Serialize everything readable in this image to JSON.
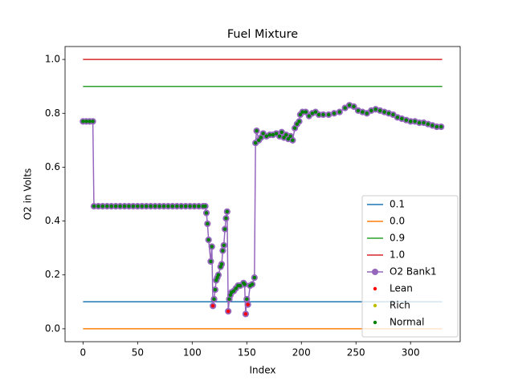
{
  "chart_data": {
    "type": "line",
    "title": "Fuel Mixture",
    "xlabel": "Index",
    "ylabel": "O2 in Volts",
    "xlim": [
      -16.45,
      345.45
    ],
    "ylim": [
      -0.048,
      1.048
    ],
    "xticks": [
      0,
      50,
      100,
      150,
      200,
      250,
      300
    ],
    "yticks": [
      {
        "value": 0,
        "label": "0.0"
      },
      0.2,
      0.4,
      0.6,
      0.8,
      {
        "value": 1,
        "label": "1.0"
      }
    ],
    "legend": "lower right",
    "series": [
      {
        "name": "0.1",
        "color": "#1f77b4",
        "style": "line",
        "x": [
          0,
          329
        ],
        "values": [
          0.1,
          0.1
        ]
      },
      {
        "name": "0.0",
        "color": "#ff7f0e",
        "style": "line",
        "x": [
          0,
          329
        ],
        "values": [
          0,
          0
        ]
      },
      {
        "name": "0.9",
        "color": "#2ca02c",
        "style": "line",
        "x": [
          0,
          329
        ],
        "values": [
          0.9,
          0.9
        ]
      },
      {
        "name": "1.0",
        "color": "#d62728",
        "style": "line",
        "x": [
          0,
          329
        ],
        "values": [
          1,
          1
        ]
      },
      {
        "name": "O2 Bank1",
        "color": "#9467bd",
        "style": "line-marker",
        "x": [
          0,
          3,
          6,
          9,
          10,
          14,
          18,
          22,
          26,
          30,
          34,
          38,
          42,
          46,
          50,
          54,
          58,
          62,
          66,
          70,
          74,
          78,
          82,
          86,
          90,
          94,
          98,
          102,
          106,
          110,
          112,
          113,
          114,
          115,
          117,
          118,
          119,
          120,
          121,
          122,
          123,
          124,
          126,
          127,
          128,
          129,
          130,
          131,
          132,
          133,
          134,
          135,
          136,
          138,
          140,
          142,
          144,
          147,
          148,
          149,
          150,
          151,
          153,
          155,
          157,
          158,
          159,
          161,
          163,
          165,
          168,
          171,
          174,
          177,
          180,
          182,
          184,
          186,
          188,
          190,
          192,
          194,
          196,
          198,
          199,
          201,
          204,
          207,
          210,
          213,
          216,
          220,
          225,
          230,
          235,
          240,
          244,
          248,
          252,
          256,
          260,
          264,
          268,
          272,
          276,
          280,
          284,
          288,
          292,
          296,
          300,
          304,
          308,
          312,
          316,
          320,
          324,
          328
        ],
        "values": [
          0.77,
          0.77,
          0.77,
          0.77,
          0.455,
          0.455,
          0.455,
          0.455,
          0.455,
          0.455,
          0.455,
          0.455,
          0.455,
          0.455,
          0.455,
          0.455,
          0.455,
          0.455,
          0.455,
          0.455,
          0.455,
          0.455,
          0.455,
          0.455,
          0.455,
          0.455,
          0.455,
          0.455,
          0.455,
          0.455,
          0.455,
          0.43,
          0.39,
          0.33,
          0.25,
          0.305,
          0.085,
          0.11,
          0.145,
          0.18,
          0.19,
          0.2,
          0.23,
          0.24,
          0.29,
          0.31,
          0.37,
          0.41,
          0.435,
          0.065,
          0.11,
          0.125,
          0.135,
          0.14,
          0.15,
          0.16,
          0.16,
          0.17,
          0.165,
          0.055,
          0.11,
          0.09,
          0.16,
          0.165,
          0.19,
          0.69,
          0.735,
          0.7,
          0.71,
          0.725,
          0.715,
          0.72,
          0.72,
          0.725,
          0.715,
          0.73,
          0.71,
          0.72,
          0.705,
          0.715,
          0.7,
          0.745,
          0.76,
          0.77,
          0.795,
          0.805,
          0.805,
          0.79,
          0.8,
          0.805,
          0.795,
          0.795,
          0.795,
          0.8,
          0.805,
          0.82,
          0.83,
          0.825,
          0.81,
          0.805,
          0.8,
          0.81,
          0.815,
          0.81,
          0.805,
          0.8,
          0.795,
          0.785,
          0.78,
          0.775,
          0.77,
          0.77,
          0.765,
          0.765,
          0.76,
          0.755,
          0.75,
          0.75
        ]
      },
      {
        "name": "Lean",
        "color": "#ff0000",
        "style": "marker",
        "x": [
          119,
          133,
          149,
          151
        ],
        "values": [
          0.085,
          0.065,
          0.055,
          0.09
        ]
      },
      {
        "name": "Rich",
        "color": "#bfbf00",
        "style": "marker",
        "x": [],
        "values": []
      },
      {
        "name": "Normal",
        "color": "#008000",
        "style": "marker",
        "x": [
          0,
          3,
          6,
          9,
          10,
          14,
          18,
          22,
          26,
          30,
          34,
          38,
          42,
          46,
          50,
          54,
          58,
          62,
          66,
          70,
          74,
          78,
          82,
          86,
          90,
          94,
          98,
          102,
          106,
          110,
          112,
          113,
          114,
          115,
          117,
          118,
          120,
          121,
          122,
          123,
          124,
          126,
          127,
          128,
          129,
          130,
          131,
          132,
          134,
          135,
          136,
          138,
          140,
          142,
          144,
          147,
          148,
          150,
          153,
          155,
          157,
          158,
          159,
          161,
          163,
          165,
          168,
          171,
          174,
          177,
          180,
          182,
          184,
          186,
          188,
          190,
          192,
          194,
          196,
          198,
          199,
          201,
          204,
          207,
          210,
          213,
          216,
          220,
          225,
          230,
          235,
          240,
          244,
          248,
          252,
          256,
          260,
          264,
          268,
          272,
          276,
          280,
          284,
          288,
          292,
          296,
          300,
          304,
          308,
          312,
          316,
          320,
          324,
          328
        ],
        "values": [
          0.77,
          0.77,
          0.77,
          0.77,
          0.455,
          0.455,
          0.455,
          0.455,
          0.455,
          0.455,
          0.455,
          0.455,
          0.455,
          0.455,
          0.455,
          0.455,
          0.455,
          0.455,
          0.455,
          0.455,
          0.455,
          0.455,
          0.455,
          0.455,
          0.455,
          0.455,
          0.455,
          0.455,
          0.455,
          0.455,
          0.455,
          0.43,
          0.39,
          0.33,
          0.25,
          0.305,
          0.11,
          0.145,
          0.18,
          0.19,
          0.2,
          0.23,
          0.24,
          0.29,
          0.31,
          0.37,
          0.41,
          0.435,
          0.11,
          0.125,
          0.135,
          0.14,
          0.15,
          0.16,
          0.16,
          0.17,
          0.165,
          0.11,
          0.16,
          0.165,
          0.19,
          0.69,
          0.735,
          0.7,
          0.71,
          0.725,
          0.715,
          0.72,
          0.72,
          0.725,
          0.715,
          0.73,
          0.71,
          0.72,
          0.705,
          0.715,
          0.7,
          0.745,
          0.76,
          0.77,
          0.795,
          0.805,
          0.805,
          0.79,
          0.8,
          0.805,
          0.795,
          0.795,
          0.795,
          0.8,
          0.805,
          0.82,
          0.83,
          0.825,
          0.81,
          0.805,
          0.8,
          0.81,
          0.815,
          0.81,
          0.805,
          0.8,
          0.795,
          0.785,
          0.78,
          0.775,
          0.77,
          0.77,
          0.765,
          0.765,
          0.76,
          0.755,
          0.75,
          0.75
        ]
      }
    ]
  }
}
